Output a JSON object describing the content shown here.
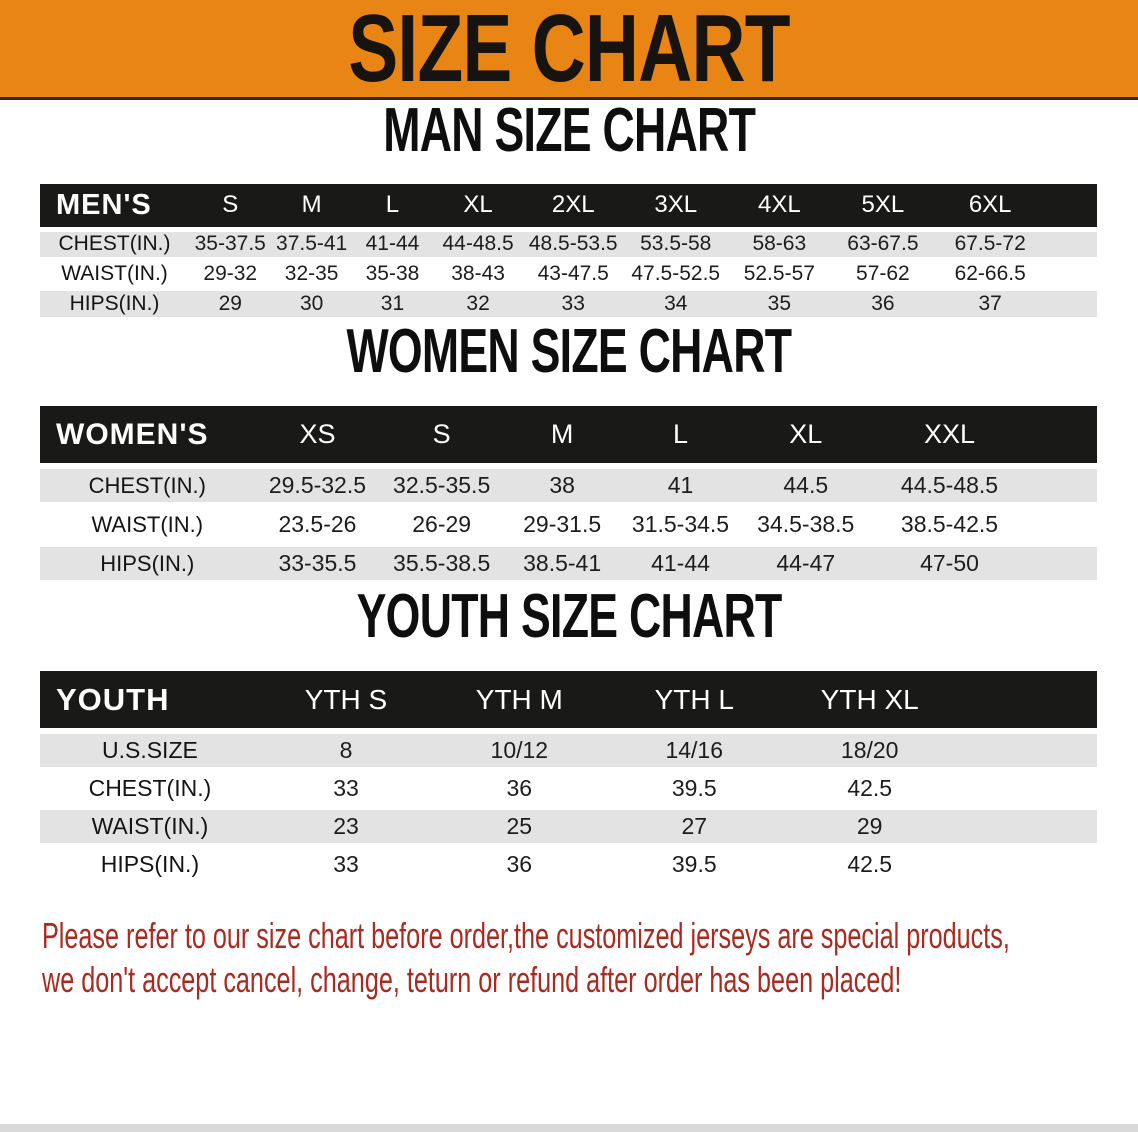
{
  "banner": {
    "title": "SIZE CHART"
  },
  "sections": [
    {
      "id": "men",
      "heading": "MAN SIZE CHART",
      "corner_label": "MEN'S",
      "columns": [
        "S",
        "M",
        "L",
        "XL",
        "2XL",
        "3XL",
        "4XL",
        "5XL",
        "6XL"
      ],
      "rows": [
        {
          "label": "CHEST(IN.)",
          "values": [
            "35-37.5",
            "37.5-41",
            "41-44",
            "44-48.5",
            "48.5-53.5",
            "53.5-58",
            "58-63",
            "63-67.5",
            "67.5-72"
          ]
        },
        {
          "label": "WAIST(IN.)",
          "values": [
            "29-32",
            "32-35",
            "35-38",
            "38-43",
            "43-47.5",
            "47.5-52.5",
            "52.5-57",
            "57-62",
            "62-66.5"
          ]
        },
        {
          "label": "HIPS(IN.)",
          "values": [
            "29",
            "30",
            "31",
            "32",
            "33",
            "34",
            "35",
            "36",
            "37"
          ]
        }
      ]
    },
    {
      "id": "women",
      "heading": "WOMEN SIZE CHART",
      "corner_label": "WOMEN'S",
      "columns": [
        "XS",
        "S",
        "M",
        "L",
        "XL",
        "XXL"
      ],
      "rows": [
        {
          "label": "CHEST(IN.)",
          "values": [
            "29.5-32.5",
            "32.5-35.5",
            "38",
            "41",
            "44.5",
            "44.5-48.5"
          ]
        },
        {
          "label": "WAIST(IN.)",
          "values": [
            "23.5-26",
            "26-29",
            "29-31.5",
            "31.5-34.5",
            "34.5-38.5",
            "38.5-42.5"
          ]
        },
        {
          "label": "HIPS(IN.)",
          "values": [
            "33-35.5",
            "35.5-38.5",
            "38.5-41",
            "41-44",
            "44-47",
            "47-50"
          ]
        }
      ]
    },
    {
      "id": "youth",
      "heading": "YOUTH SIZE CHART",
      "corner_label": "YOUTH",
      "columns": [
        "YTH S",
        "YTH M",
        "YTH L",
        "YTH XL"
      ],
      "rows": [
        {
          "label": "U.S.SIZE",
          "values": [
            "8",
            "10/12",
            "14/16",
            "18/20"
          ]
        },
        {
          "label": "CHEST(IN.)",
          "values": [
            "33",
            "36",
            "39.5",
            "42.5"
          ]
        },
        {
          "label": "WAIST(IN.)",
          "values": [
            "23",
            "25",
            "27",
            "29"
          ]
        },
        {
          "label": "HIPS(IN.)",
          "values": [
            "33",
            "36",
            "39.5",
            "42.5"
          ]
        }
      ]
    }
  ],
  "footer": {
    "line1": "Please refer to our size chart before order,the customized jerseys are special products,",
    "line2": "we don't accept cancel, change, teturn or refund after order has been placed!"
  },
  "colors": {
    "banner_bg": "#e88514",
    "banner_border": "#32281c",
    "banner_title": "#161311",
    "bar_bg": "#191917",
    "bar_text": "#ffffff",
    "stripe": "#e3e3e3",
    "text": "#1d1d1d",
    "footer": "#ab2a20",
    "bottom_strip": "#d9d9d9"
  }
}
